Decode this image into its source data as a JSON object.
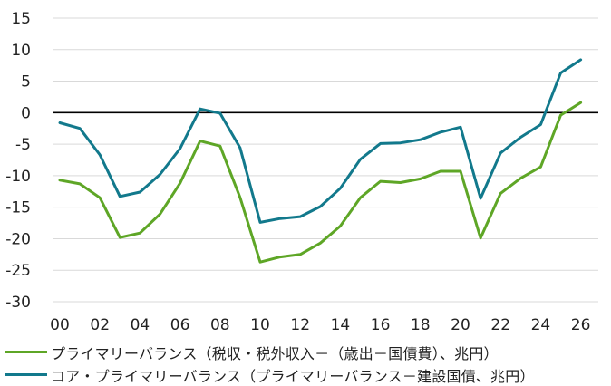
{
  "chart_data": {
    "type": "line",
    "x": [
      "00",
      "01",
      "02",
      "03",
      "04",
      "05",
      "06",
      "07",
      "08",
      "09",
      "10",
      "11",
      "12",
      "13",
      "14",
      "15",
      "16",
      "17",
      "18",
      "19",
      "20",
      "21",
      "22",
      "23",
      "24",
      "25",
      "26"
    ],
    "xtick_labels": [
      "00",
      "02",
      "04",
      "06",
      "08",
      "10",
      "12",
      "14",
      "16",
      "18",
      "20",
      "22",
      "24",
      "26"
    ],
    "ylim": [
      -30,
      15
    ],
    "yticks": [
      15,
      10,
      5,
      0,
      -5,
      -10,
      -15,
      -20,
      -25,
      -30
    ],
    "series": [
      {
        "name": "プライマリーバランス（税収・税外収入－（歳出－国債費）、兆円）",
        "color": "#5ea626",
        "values": [
          -10.7,
          -11.3,
          -13.5,
          -19.8,
          -19.1,
          -16.1,
          -11.2,
          -4.5,
          -5.3,
          -13.5,
          -23.7,
          -22.9,
          -22.5,
          -20.7,
          -18.0,
          -13.5,
          -10.9,
          -11.1,
          -10.5,
          -9.3,
          -9.3,
          -19.9,
          -12.8,
          -10.4,
          -8.6,
          -0.4,
          1.6
        ]
      },
      {
        "name": "コア・プライマリーバランス（プライマリーバランス－建設国債、兆円）",
        "color": "#12798c",
        "values": [
          -1.6,
          -2.5,
          -6.7,
          -13.3,
          -12.6,
          -9.8,
          -5.7,
          0.6,
          -0.1,
          -5.6,
          -17.4,
          -16.8,
          -16.5,
          -14.9,
          -12.0,
          -7.4,
          -4.9,
          -4.8,
          -4.3,
          -3.1,
          -2.3,
          -13.6,
          -6.4,
          -3.9,
          -1.9,
          6.3,
          8.4
        ]
      }
    ]
  }
}
